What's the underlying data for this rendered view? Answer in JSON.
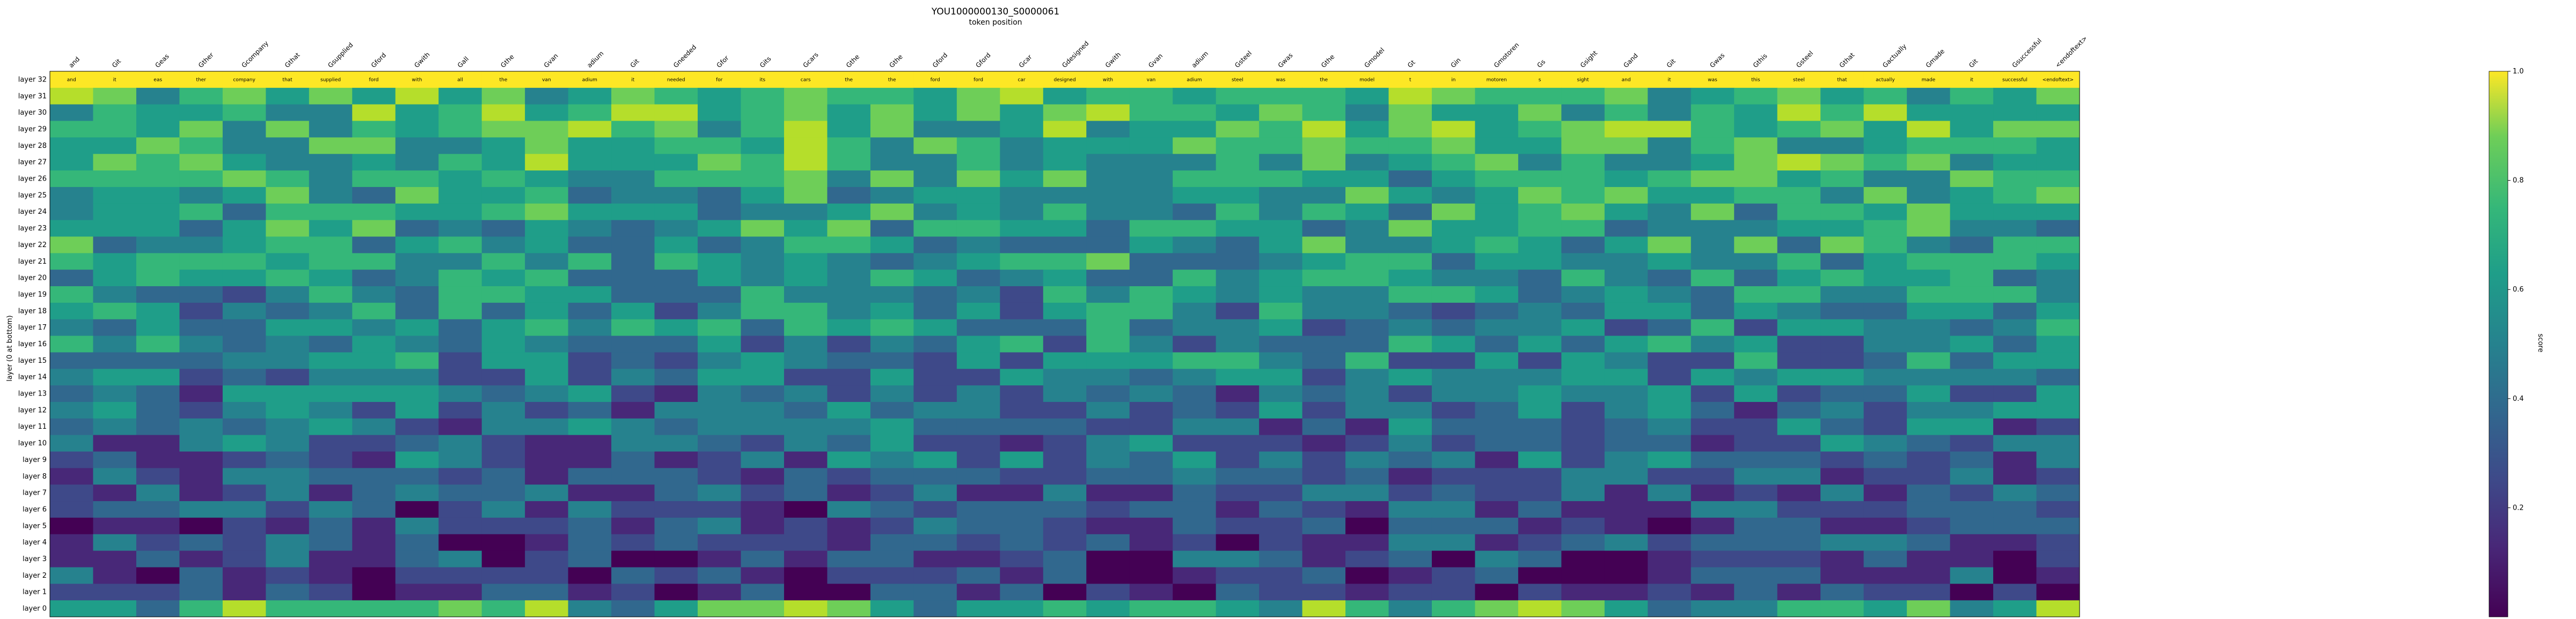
{
  "chart_data": {
    "type": "heatmap",
    "title": "YOU1000000130_S0000061",
    "xlabel": "token position",
    "ylabel": "layer (0 at bottom)",
    "colorbar_label": "score",
    "colorbar_ticks": [
      "0.2",
      "0.4",
      "0.6",
      "0.8",
      "1.0"
    ],
    "colormap": "viridis",
    "value_range": [
      0.0,
      1.0
    ],
    "x_tokens": [
      "and",
      "Git",
      "Geas",
      "Gther",
      "Gcompany",
      "Gthat",
      "Gsupplied",
      "Gford",
      "Gwith",
      "Gall",
      "Gthe",
      "Gvan",
      "adium",
      "Git",
      "Gneeded",
      "Gfor",
      "Gits",
      "Gcars",
      "Gthe",
      "Gthe",
      "Gford",
      "Gford",
      "Gcar",
      "Gdesigned",
      "Gwith",
      "Gvan",
      "adium",
      "Gsteel",
      "Gwas",
      "Gthe",
      "Gmodel",
      "Gt",
      "Gin",
      "Gmotoren",
      "Gs",
      "Gsight",
      "Gand",
      "Git",
      "Gwas",
      "Gthis",
      "Gsteel",
      "Gthat",
      "Gactually",
      "Gmade",
      "Git",
      "Gsuccessful",
      "<endoftext>"
    ],
    "y_layers": [
      "layer 32",
      "layer 31",
      "layer 30",
      "layer 29",
      "layer 28",
      "layer 27",
      "layer 26",
      "layer 25",
      "layer 24",
      "layer 23",
      "layer 22",
      "layer 21",
      "layer 20",
      "layer 19",
      "layer 18",
      "layer 17",
      "layer 16",
      "layer 15",
      "layer 14",
      "layer 13",
      "layer 12",
      "layer 11",
      "layer 10",
      "layer 9",
      "layer 8",
      "layer 7",
      "layer 6",
      "layer 5",
      "layer 4",
      "layer 3",
      "layer 2",
      "layer 1",
      "layer 0"
    ],
    "top_row_predictions": [
      "and",
      "Git",
      "Geas",
      "Gther",
      "Gcompany",
      "Gthat",
      "Gsupplied",
      "Gford",
      "Gwith",
      "Gall",
      "Gthe",
      "Gvan",
      "adium",
      "Git",
      "Gneeded",
      "Gfor",
      "Gits",
      "Gcars",
      "Gthe",
      "Gthe",
      "Gford",
      "Gford",
      "Gcar",
      "Gdesigned",
      "Gwith",
      "Gvan",
      "adium",
      "Gsteel",
      "Gwas",
      "Gthe",
      "Gmodel",
      "Gt",
      "Gin",
      "Gmotoren",
      "Gs",
      "Gsight",
      "Gand",
      "Git",
      "Gwas",
      "Gthis",
      "Gsteel",
      "Gthat",
      "Gactually",
      "Gmade",
      "Git",
      "Gsuccessful",
      "<endoftext>"
    ],
    "grid": false,
    "highlighted_cells": "boxed cells mark rows where the prediction matches the top-layer token"
  }
}
